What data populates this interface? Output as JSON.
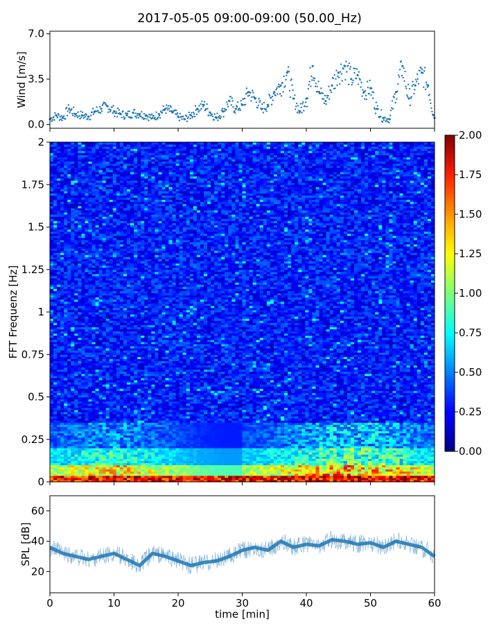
{
  "figure": {
    "title": "2017-05-05 09:00-09:00 (50.00_Hz)"
  },
  "chart_data": [
    {
      "type": "scatter",
      "ylabel": "Wind [m/s]",
      "xlim": [
        0,
        60
      ],
      "ylim": [
        -0.3,
        7.2
      ],
      "yticks": [
        "0.0",
        "3.5",
        "7.0"
      ],
      "ytick_values": [
        0,
        3.5,
        7.0
      ],
      "color": "#1f77b4",
      "points": [
        [
          0.0,
          0.4
        ],
        [
          1.0,
          0.7
        ],
        [
          2.0,
          0.5
        ],
        [
          3.0,
          1.2
        ],
        [
          4.0,
          0.8
        ],
        [
          5.0,
          0.7
        ],
        [
          6.0,
          0.6
        ],
        [
          7.0,
          1.0
        ],
        [
          8.0,
          1.2
        ],
        [
          9.0,
          1.4
        ],
        [
          10.0,
          1.0
        ],
        [
          11.0,
          0.8
        ],
        [
          12.0,
          0.7
        ],
        [
          13.0,
          0.9
        ],
        [
          14.0,
          0.8
        ],
        [
          15.0,
          0.7
        ],
        [
          16.0,
          0.5
        ],
        [
          17.0,
          0.8
        ],
        [
          18.0,
          1.2
        ],
        [
          19.0,
          1.0
        ],
        [
          20.0,
          0.6
        ],
        [
          21.0,
          0.4
        ],
        [
          22.0,
          0.7
        ],
        [
          23.0,
          1.2
        ],
        [
          24.0,
          1.5
        ],
        [
          25.0,
          0.9
        ],
        [
          26.0,
          0.5
        ],
        [
          27.0,
          1.0
        ],
        [
          28.0,
          1.8
        ],
        [
          29.0,
          1.2
        ],
        [
          30.0,
          1.5
        ],
        [
          31.0,
          2.5
        ],
        [
          32.0,
          2.0
        ],
        [
          33.0,
          1.2
        ],
        [
          34.0,
          1.5
        ],
        [
          35.0,
          2.5
        ],
        [
          36.0,
          3.0
        ],
        [
          37.0,
          4.0
        ],
        [
          38.0,
          2.0
        ],
        [
          39.0,
          1.0
        ],
        [
          40.0,
          2.0
        ],
        [
          41.0,
          4.5
        ],
        [
          42.0,
          2.5
        ],
        [
          43.0,
          1.8
        ],
        [
          44.0,
          3.0
        ],
        [
          45.0,
          4.0
        ],
        [
          46.0,
          4.5
        ],
        [
          47.0,
          3.5
        ],
        [
          48.0,
          3.8
        ],
        [
          49.0,
          2.5
        ],
        [
          50.0,
          2.8
        ],
        [
          51.0,
          1.2
        ],
        [
          52.0,
          0.5
        ],
        [
          53.0,
          0.4
        ],
        [
          54.0,
          2.5
        ],
        [
          55.0,
          4.5
        ],
        [
          56.0,
          2.0
        ],
        [
          57.0,
          3.0
        ],
        [
          58.0,
          4.0
        ],
        [
          59.0,
          3.0
        ],
        [
          60.0,
          0.5
        ]
      ]
    },
    {
      "type": "heatmap",
      "ylabel": "FFT Frequenz [Hz]",
      "xlim": [
        0,
        60
      ],
      "ylim": [
        0,
        2
      ],
      "yticks": [
        "0",
        "0.25",
        "0.5",
        "0.75",
        "1",
        "1.25",
        "1.5",
        "1.75",
        "2"
      ],
      "ytick_values": [
        0,
        0.25,
        0.5,
        0.75,
        1,
        1.25,
        1.5,
        1.75,
        2
      ],
      "colormap": "jet",
      "colorbar": {
        "range": [
          0,
          2
        ],
        "ticks": [
          "0.00",
          "0.25",
          "0.50",
          "0.75",
          "1.00",
          "1.25",
          "1.50",
          "1.75",
          "2.00"
        ],
        "tick_values": [
          0,
          0.25,
          0.5,
          0.75,
          1.0,
          1.25,
          1.5,
          1.75,
          2.0
        ]
      }
    },
    {
      "type": "line",
      "ylabel": "SPL [dB]",
      "xlabel": "time [min]",
      "xlim": [
        0,
        60
      ],
      "ylim": [
        6,
        70
      ],
      "yticks": [
        "20",
        "40",
        "60"
      ],
      "ytick_values": [
        20,
        40,
        60
      ],
      "xticks": [
        "0",
        "10",
        "20",
        "30",
        "40",
        "50",
        "60"
      ],
      "xtick_values": [
        0,
        10,
        20,
        30,
        40,
        50,
        60
      ],
      "color": "#1f77b4",
      "x": [
        0,
        2,
        4,
        6,
        8,
        10,
        12,
        14,
        16,
        18,
        20,
        22,
        24,
        26,
        28,
        30,
        32,
        34,
        36,
        38,
        40,
        42,
        44,
        46,
        48,
        50,
        52,
        54,
        56,
        58,
        60
      ],
      "values": [
        36,
        32,
        30,
        28,
        30,
        32,
        28,
        24,
        32,
        30,
        27,
        24,
        26,
        27,
        30,
        34,
        36,
        34,
        40,
        36,
        38,
        37,
        41,
        40,
        38,
        39,
        36,
        40,
        38,
        36,
        30
      ]
    }
  ]
}
